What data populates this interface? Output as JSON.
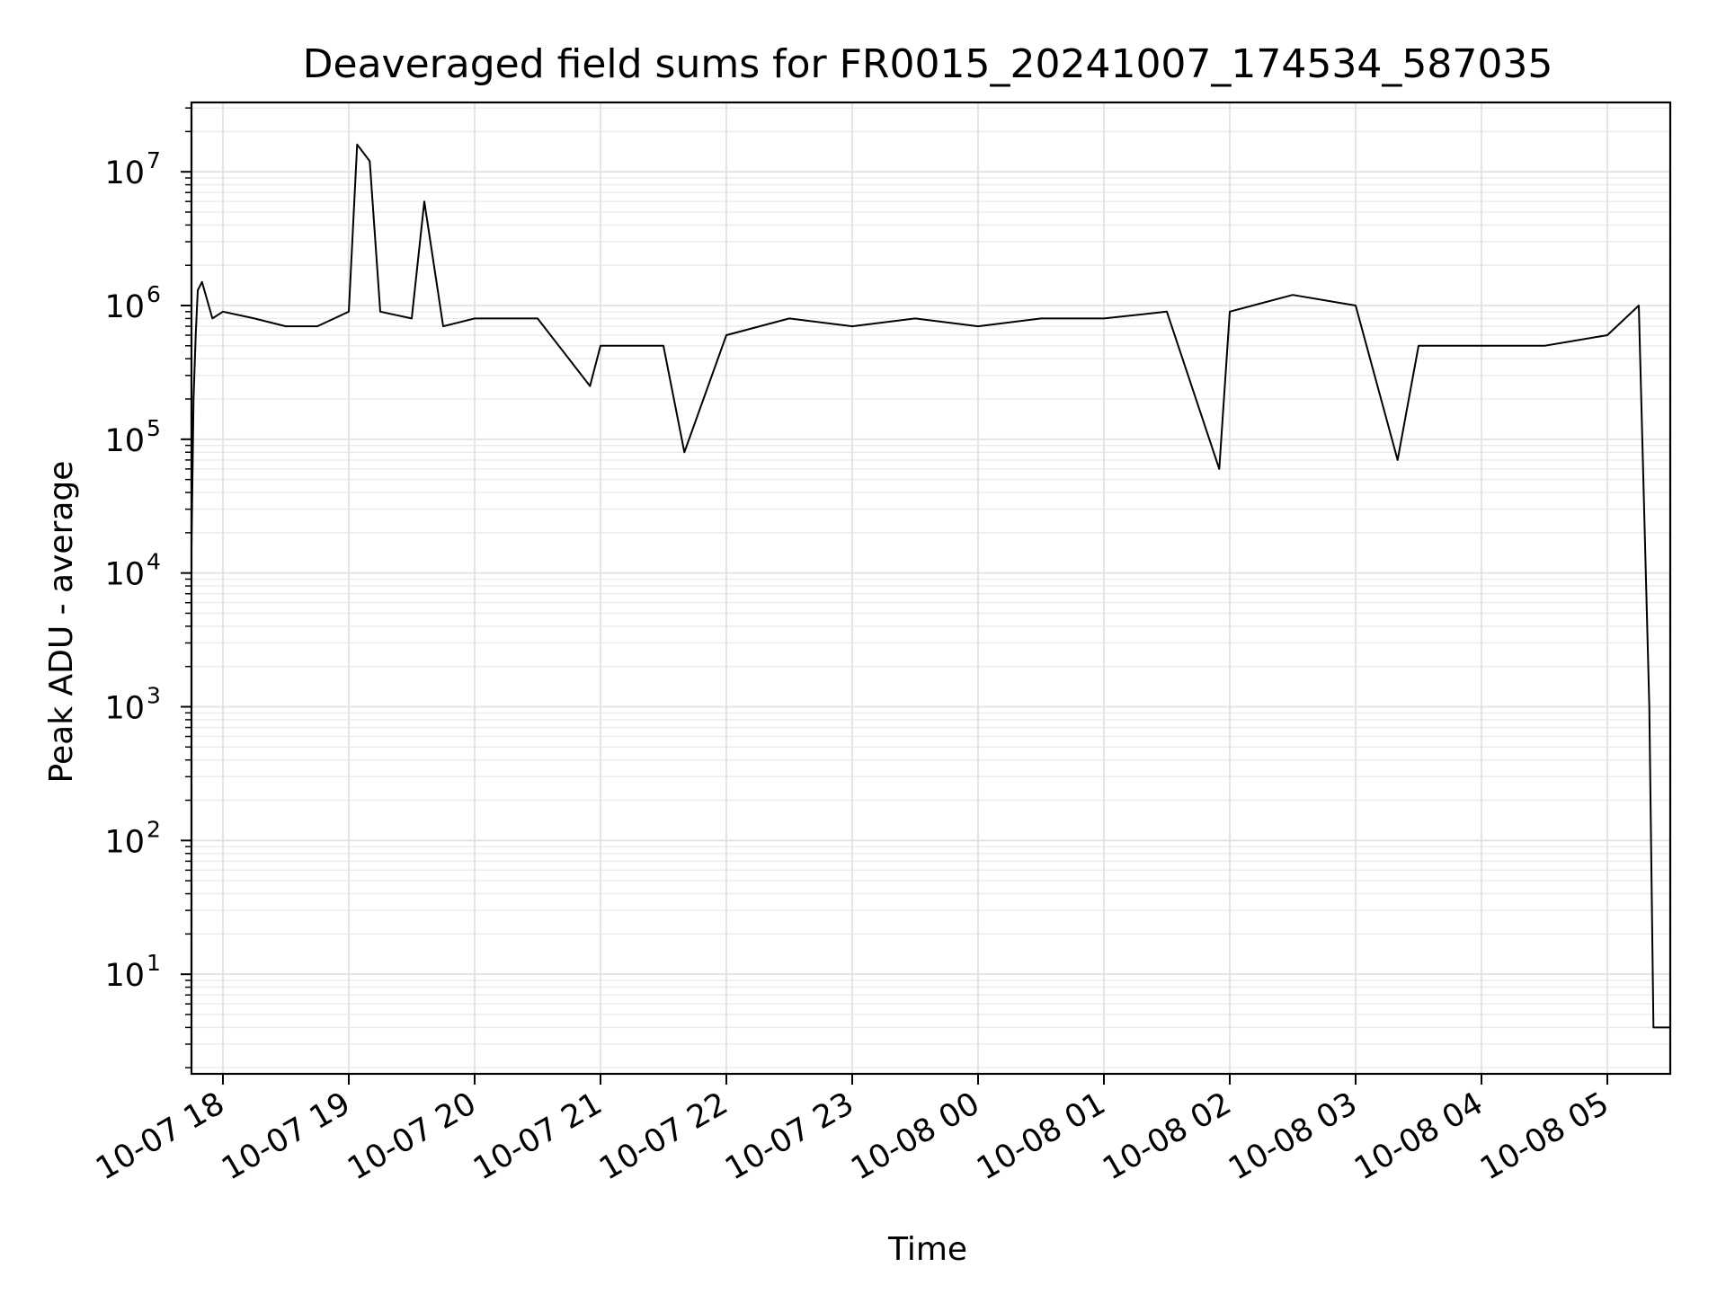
{
  "chart_data": {
    "type": "line",
    "title": "Deaveraged field sums for FR0015_20241007_174534_587035",
    "xlabel": "Time",
    "ylabel": "Peak ADU - average",
    "y_scale": "log",
    "ylim": [
      1.8,
      33000000.0
    ],
    "xlim": [
      "2024-10-07 17:45",
      "2024-10-08 05:30"
    ],
    "grid": "on (major and minor)",
    "x_tick_labels": [
      "10-07 18",
      "10-07 19",
      "10-07 20",
      "10-07 21",
      "10-07 22",
      "10-07 23",
      "10-08 00",
      "10-08 01",
      "10-08 02",
      "10-08 03",
      "10-08 04",
      "10-08 05"
    ],
    "x_tick_times": [
      "2024-10-07 18:00",
      "2024-10-07 19:00",
      "2024-10-07 20:00",
      "2024-10-07 21:00",
      "2024-10-07 22:00",
      "2024-10-07 23:00",
      "2024-10-08 00:00",
      "2024-10-08 01:00",
      "2024-10-08 02:00",
      "2024-10-08 03:00",
      "2024-10-08 04:00",
      "2024-10-08 05:00"
    ],
    "y_ticks": [
      {
        "base": "10",
        "exp": "1",
        "value": 10
      },
      {
        "base": "10",
        "exp": "2",
        "value": 100
      },
      {
        "base": "10",
        "exp": "3",
        "value": 1000
      },
      {
        "base": "10",
        "exp": "4",
        "value": 10000
      },
      {
        "base": "10",
        "exp": "5",
        "value": 100000
      },
      {
        "base": "10",
        "exp": "6",
        "value": 1000000
      },
      {
        "base": "10",
        "exp": "7",
        "value": 10000000
      }
    ],
    "series": [
      {
        "line_color": "#000000",
        "x": [
          "2024-10-07 17:45",
          "2024-10-07 17:46",
          "2024-10-07 17:47",
          "2024-10-07 17:48",
          "2024-10-07 17:50",
          "2024-10-07 17:55",
          "2024-10-07 18:00",
          "2024-10-07 18:15",
          "2024-10-07 18:30",
          "2024-10-07 18:45",
          "2024-10-07 19:00",
          "2024-10-07 19:04",
          "2024-10-07 19:10",
          "2024-10-07 19:15",
          "2024-10-07 19:30",
          "2024-10-07 19:36",
          "2024-10-07 19:45",
          "2024-10-07 20:00",
          "2024-10-07 20:30",
          "2024-10-07 20:55",
          "2024-10-07 21:00",
          "2024-10-07 21:30",
          "2024-10-07 21:40",
          "2024-10-07 22:00",
          "2024-10-07 22:30",
          "2024-10-07 23:00",
          "2024-10-07 23:30",
          "2024-10-08 00:00",
          "2024-10-08 00:30",
          "2024-10-08 01:00",
          "2024-10-08 01:30",
          "2024-10-08 01:55",
          "2024-10-08 02:00",
          "2024-10-08 02:30",
          "2024-10-08 03:00",
          "2024-10-08 03:20",
          "2024-10-08 03:30",
          "2024-10-08 04:00",
          "2024-10-08 04:30",
          "2024-10-08 05:00",
          "2024-10-08 05:15",
          "2024-10-08 05:20",
          "2024-10-08 05:22",
          "2024-10-08 05:25",
          "2024-10-08 05:30"
        ],
        "y": [
          15000,
          200000,
          600000,
          1300000,
          1500000,
          800000,
          900000,
          800000,
          700000,
          700000,
          900000,
          16000000,
          12000000,
          900000,
          800000,
          6000000,
          700000,
          800000,
          800000,
          250000,
          500000,
          500000,
          80000,
          600000,
          800000,
          700000,
          800000,
          700000,
          800000,
          800000,
          900000,
          60000,
          900000,
          1200000,
          1000000,
          70000,
          500000,
          500000,
          500000,
          600000,
          1000000,
          1000,
          4,
          4,
          4
        ]
      }
    ]
  }
}
